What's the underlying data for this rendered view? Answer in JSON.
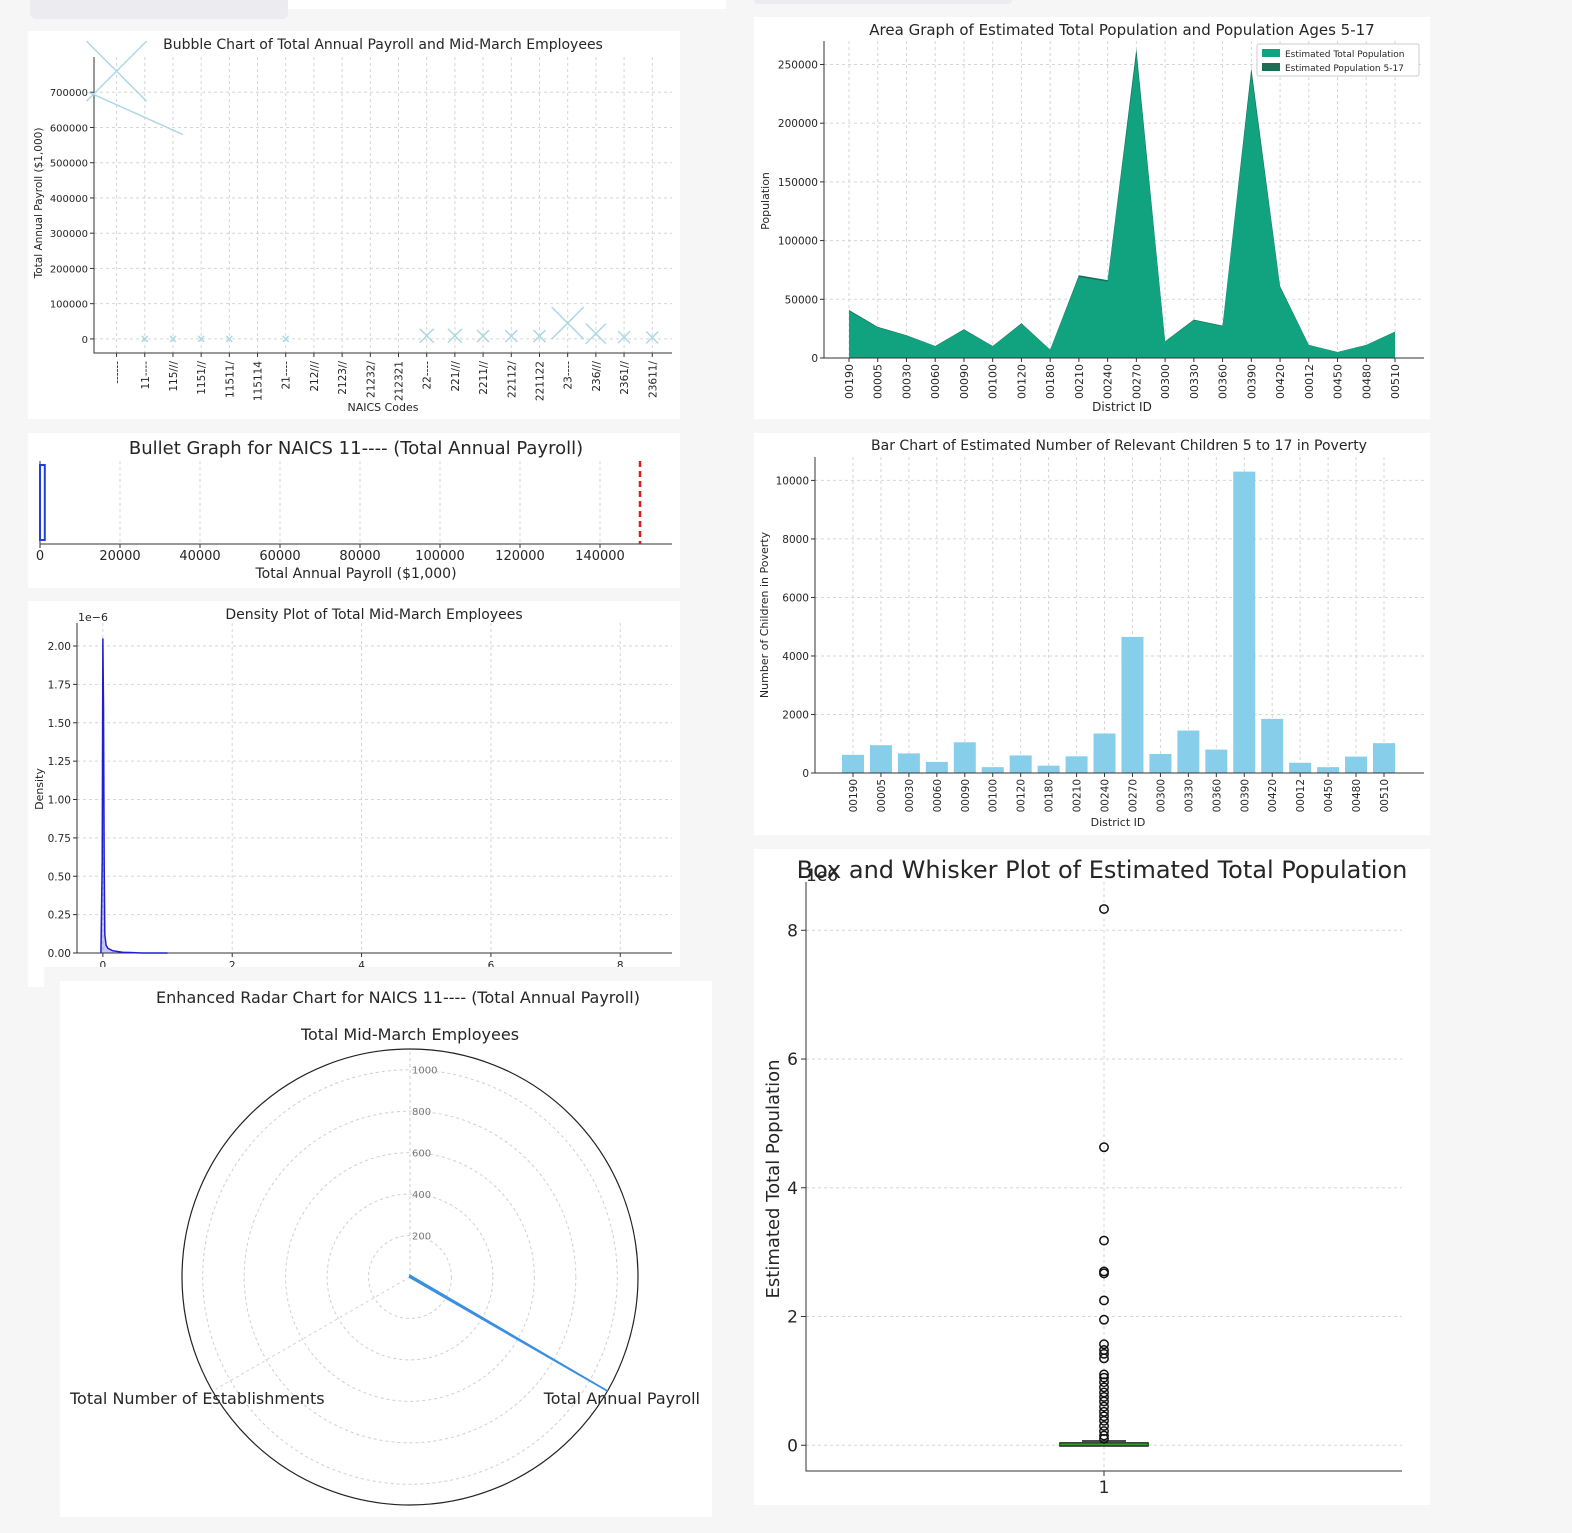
{
  "chart_data": [
    {
      "type": "bubble",
      "title": "Bubble Chart of Total Annual Payroll and Mid-March Employees",
      "xlabel": "NAICS Codes",
      "ylabel": "Total Annual Payroll ($1,000)",
      "ylim": [
        -40000,
        800000
      ],
      "yticks": [
        0,
        100000,
        200000,
        300000,
        400000,
        500000,
        600000,
        700000
      ],
      "categories": [
        "------",
        "11----",
        "115///",
        "1151//",
        "11511/",
        "115114",
        "21----",
        "212///",
        "2123//",
        "21232/",
        "212321",
        "22----",
        "221///",
        "2211//",
        "22112/",
        "221122",
        "23----",
        "236///",
        "2361//",
        "23611/"
      ],
      "values": [
        760000,
        0,
        0,
        0,
        0,
        null,
        0,
        null,
        null,
        null,
        null,
        9000,
        9000,
        8000,
        8000,
        8000,
        45000,
        15000,
        5000,
        4000
      ],
      "sizes": [
        30,
        3,
        3,
        3,
        3,
        0,
        3,
        0,
        0,
        0,
        0,
        7,
        7,
        6,
        6,
        6,
        16,
        10,
        6,
        6
      ],
      "color": "#add8e6"
    },
    {
      "type": "bullet",
      "title": "Bullet Graph for NAICS 11---- (Total Annual Payroll)",
      "xlabel": "Total Annual Payroll ($1,000)",
      "xlim": [
        0,
        158000
      ],
      "xticks": [
        0,
        20000,
        40000,
        60000,
        80000,
        100000,
        120000,
        140000
      ],
      "value": 1200,
      "target": 150000,
      "bar_color": "#1f3fe0",
      "target_color": "#e01b1b"
    },
    {
      "type": "density",
      "title": "Density Plot of Total Mid-March Employees",
      "ylabel": "Density",
      "y_offset_label": "1e−6",
      "xlim": [
        -0.4,
        8.8
      ],
      "ylim": [
        0,
        2.15
      ],
      "xticks": [
        0,
        2,
        4,
        6,
        8
      ],
      "yticks": [
        "0.00",
        "0.25",
        "0.50",
        "0.75",
        "1.00",
        "1.25",
        "1.50",
        "1.75",
        "2.00"
      ],
      "x": [
        -0.03,
        -0.01,
        0.0,
        0.01,
        0.02,
        0.03,
        0.05,
        0.08,
        0.15,
        0.3,
        0.6,
        1.0
      ],
      "y": [
        0.0,
        0.6,
        2.05,
        1.6,
        0.6,
        0.12,
        0.05,
        0.03,
        0.015,
        0.005,
        0.0,
        0.0
      ],
      "color": "#1f1fcf"
    },
    {
      "type": "radar",
      "title": "Enhanced Radar Chart for NAICS 11---- (Total Annual Payroll)",
      "axes": [
        "Total Mid-March Employees",
        "Total Annual Payroll",
        "Total Number of Establishments"
      ],
      "rlim": [
        0,
        1100
      ],
      "rticks": [
        200,
        400,
        600,
        800,
        1000
      ],
      "values": [
        8,
        1100,
        2
      ],
      "color": "#3a8fe0"
    },
    {
      "type": "area",
      "title": "Area Graph of Estimated Total Population and Population Ages 5-17",
      "xlabel": "District ID",
      "ylabel": "Population",
      "ylim": [
        0,
        270000
      ],
      "yticks": [
        0,
        50000,
        100000,
        150000,
        200000,
        250000
      ],
      "categories": [
        "00190",
        "00005",
        "00030",
        "00060",
        "00090",
        "00100",
        "00120",
        "00180",
        "00210",
        "00240",
        "00270",
        "00300",
        "00330",
        "00360",
        "00390",
        "00420",
        "00012",
        "00450",
        "00480",
        "00510"
      ],
      "series": [
        {
          "name": "Estimated Total Population",
          "color": "#11a37f",
          "values": [
            40000,
            26000,
            19000,
            10000,
            24000,
            10000,
            29000,
            7000,
            69000,
            65000,
            258000,
            14000,
            32000,
            27000,
            242000,
            60000,
            11000,
            5000,
            11000,
            22000
          ]
        },
        {
          "name": "Estimated Population 5-17",
          "color": "#1a6f55",
          "values": [
            7000,
            4500,
            3300,
            1800,
            4100,
            1800,
            5000,
            1200,
            12000,
            11000,
            44000,
            2400,
            5500,
            4700,
            41000,
            10200,
            1900,
            900,
            1900,
            3800
          ]
        }
      ]
    },
    {
      "type": "bar",
      "title": "Bar Chart of Estimated Number of Relevant Children 5 to 17 in Poverty",
      "xlabel": "District ID",
      "ylabel": "Number of Children in Poverty",
      "ylim": [
        0,
        10800
      ],
      "yticks": [
        0,
        2000,
        4000,
        6000,
        8000,
        10000
      ],
      "categories": [
        "00190",
        "00005",
        "00030",
        "00060",
        "00090",
        "00100",
        "00120",
        "00180",
        "00210",
        "00240",
        "00270",
        "00300",
        "00330",
        "00360",
        "00390",
        "00420",
        "00012",
        "00450",
        "00480",
        "00510"
      ],
      "values": [
        620,
        950,
        670,
        380,
        1050,
        200,
        600,
        250,
        570,
        1350,
        4650,
        650,
        1450,
        800,
        10300,
        1850,
        350,
        200,
        560,
        1020
      ],
      "color": "#87ceeb"
    },
    {
      "type": "box",
      "title": "Box and Whisker Plot of Estimated Total Population",
      "ylabel": "Estimated Total Population",
      "y_offset_label": "1e6",
      "xticks": [
        "1"
      ],
      "ylim": [
        -0.4,
        8.75
      ],
      "yticks": [
        0,
        2,
        4,
        6,
        8
      ],
      "median": 0.01,
      "q1": 0.0,
      "q3": 0.02,
      "whisker_low": 0.0,
      "whisker_high": 0.05,
      "outliers": [
        8.33,
        4.63,
        3.18,
        2.7,
        2.67,
        2.25,
        1.95,
        1.57,
        1.48,
        1.42,
        1.35,
        1.1,
        1.05,
        0.98,
        0.9,
        0.82,
        0.75,
        0.68,
        0.6,
        0.52,
        0.45,
        0.38,
        0.3,
        0.22,
        0.15,
        0.1
      ],
      "median_color": "#2ca02c"
    }
  ]
}
